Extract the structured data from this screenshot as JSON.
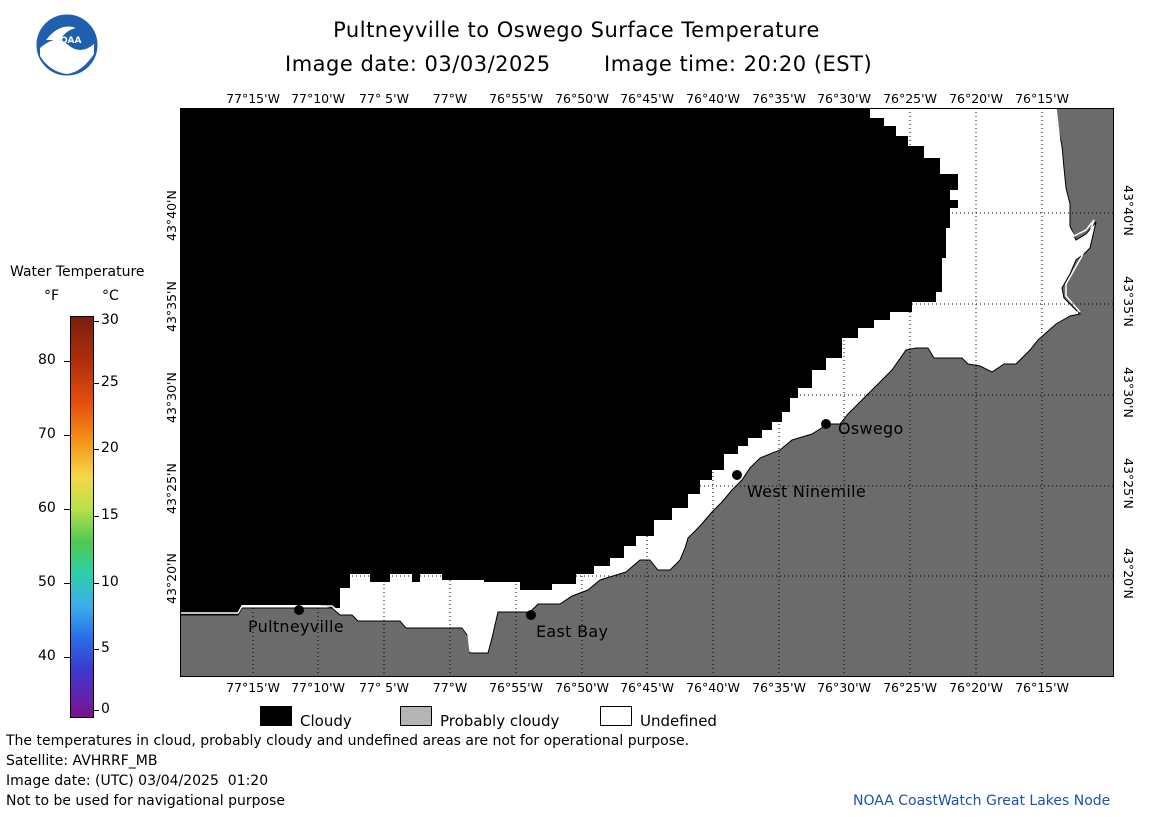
{
  "header": {
    "title": "Pultneyville to Oswego Surface Temperature",
    "image_date_label": "Image date: 03/03/2025",
    "image_time_label": "Image time: 20:20 (EST)"
  },
  "logo": {
    "text": "NOAA"
  },
  "map": {
    "lon_labels": [
      "77°15'W",
      "77°10'W",
      "77° 5'W",
      "77°W",
      "76°55'W",
      "76°50'W",
      "76°45'W",
      "76°40'W",
      "76°35'W",
      "76°30'W",
      "76°25'W",
      "76°20'W",
      "76°15'W"
    ],
    "lat_labels": [
      "43°40'N",
      "43°35'N",
      "43°30'N",
      "43°25'N",
      "43°20'N"
    ],
    "places": [
      {
        "name": "Pultneyville"
      },
      {
        "name": "East Bay"
      },
      {
        "name": "West Ninemile"
      },
      {
        "name": "Oswego"
      }
    ],
    "colors": {
      "cloud": "#000000",
      "land": "#6b6b6b",
      "undefined": "#ffffff",
      "grid": "#000000"
    }
  },
  "color_scale": {
    "title": "Water Temperature",
    "f_unit": "°F",
    "c_unit": "°C",
    "f_ticks": [
      "80",
      "70",
      "60",
      "50",
      "40"
    ],
    "c_ticks": [
      "30",
      "25",
      "20",
      "15",
      "10",
      "5",
      "0"
    ]
  },
  "legend": {
    "items": [
      {
        "label": "Cloudy",
        "color": "#000000"
      },
      {
        "label": "Probably cloudy",
        "color": "#b4b4b4"
      },
      {
        "label": "Undefined",
        "color": "#ffffff"
      }
    ]
  },
  "footer": {
    "line1": "The temperatures in cloud, probably cloudy and undefined areas are not for operational purpose.",
    "line2": "Satellite: AVHRRF_MB",
    "line3": "Image date: (UTC) 03/04/2025  01:20",
    "line4": "Not to be used for navigational purpose",
    "credit": "NOAA CoastWatch Great Lakes Node"
  }
}
